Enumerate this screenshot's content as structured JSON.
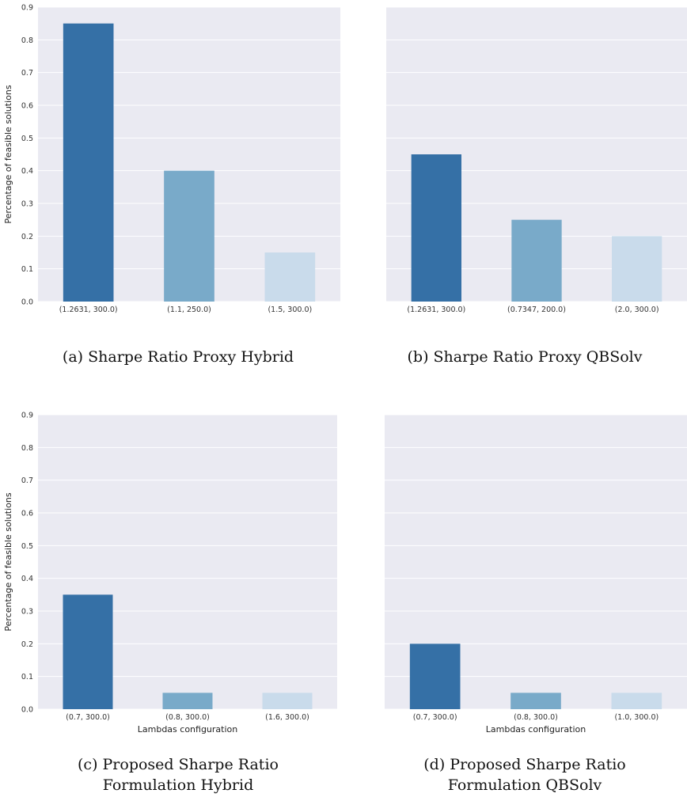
{
  "chart_data": [
    {
      "type": "bar",
      "categories": [
        "(1.2631, 300.0)",
        "(1.1, 250.0)",
        "(1.5, 300.0)"
      ],
      "values": [
        0.85,
        0.4,
        0.15
      ],
      "colors": [
        "#3570a6",
        "#79aac9",
        "#c9dbeb"
      ],
      "xlabel": "",
      "ylabel": "Percentage of feasible solutions",
      "ylim": [
        0,
        0.9
      ],
      "yticks": [
        "0.0",
        "0.1",
        "0.2",
        "0.3",
        "0.4",
        "0.5",
        "0.6",
        "0.7",
        "0.8",
        "0.9"
      ],
      "show_yticks": true,
      "grid": true,
      "caption_lines": [
        "(a) Sharpe Ratio Proxy Hybrid"
      ]
    },
    {
      "type": "bar",
      "categories": [
        "(1.2631, 300.0)",
        "(0.7347, 200.0)",
        "(2.0, 300.0)"
      ],
      "values": [
        0.45,
        0.25,
        0.2
      ],
      "colors": [
        "#3570a6",
        "#79aac9",
        "#c9dbeb"
      ],
      "xlabel": "",
      "ylabel": "",
      "ylim": [
        0,
        0.9
      ],
      "yticks": [],
      "show_yticks": false,
      "grid": true,
      "caption_lines": [
        "(b) Sharpe Ratio Proxy QBSolv"
      ]
    },
    {
      "type": "bar",
      "categories": [
        "(0.7, 300.0)",
        "(0.8, 300.0)",
        "(1.6, 300.0)"
      ],
      "values": [
        0.35,
        0.05,
        0.05
      ],
      "colors": [
        "#3570a6",
        "#79aac9",
        "#c9dbeb"
      ],
      "xlabel": "Lambdas configuration",
      "ylabel": "Percentage of feasible solutions",
      "ylim": [
        0,
        0.9
      ],
      "yticks": [
        "0.0",
        "0.1",
        "0.2",
        "0.3",
        "0.4",
        "0.5",
        "0.6",
        "0.7",
        "0.8",
        "0.9"
      ],
      "show_yticks": true,
      "grid": true,
      "caption_lines": [
        "(c) Proposed Sharpe Ratio",
        "Formulation Hybrid"
      ]
    },
    {
      "type": "bar",
      "categories": [
        "(0.7, 300.0)",
        "(0.8, 300.0)",
        "(1.0, 300.0)"
      ],
      "values": [
        0.2,
        0.05,
        0.05
      ],
      "colors": [
        "#3570a6",
        "#79aac9",
        "#c9dbeb"
      ],
      "xlabel": "Lambdas configuration",
      "ylabel": "",
      "ylim": [
        0,
        0.9
      ],
      "yticks": [],
      "show_yticks": false,
      "grid": true,
      "caption_lines": [
        "(d) Proposed Sharpe Ratio",
        "Formulation QBSolv"
      ]
    }
  ]
}
